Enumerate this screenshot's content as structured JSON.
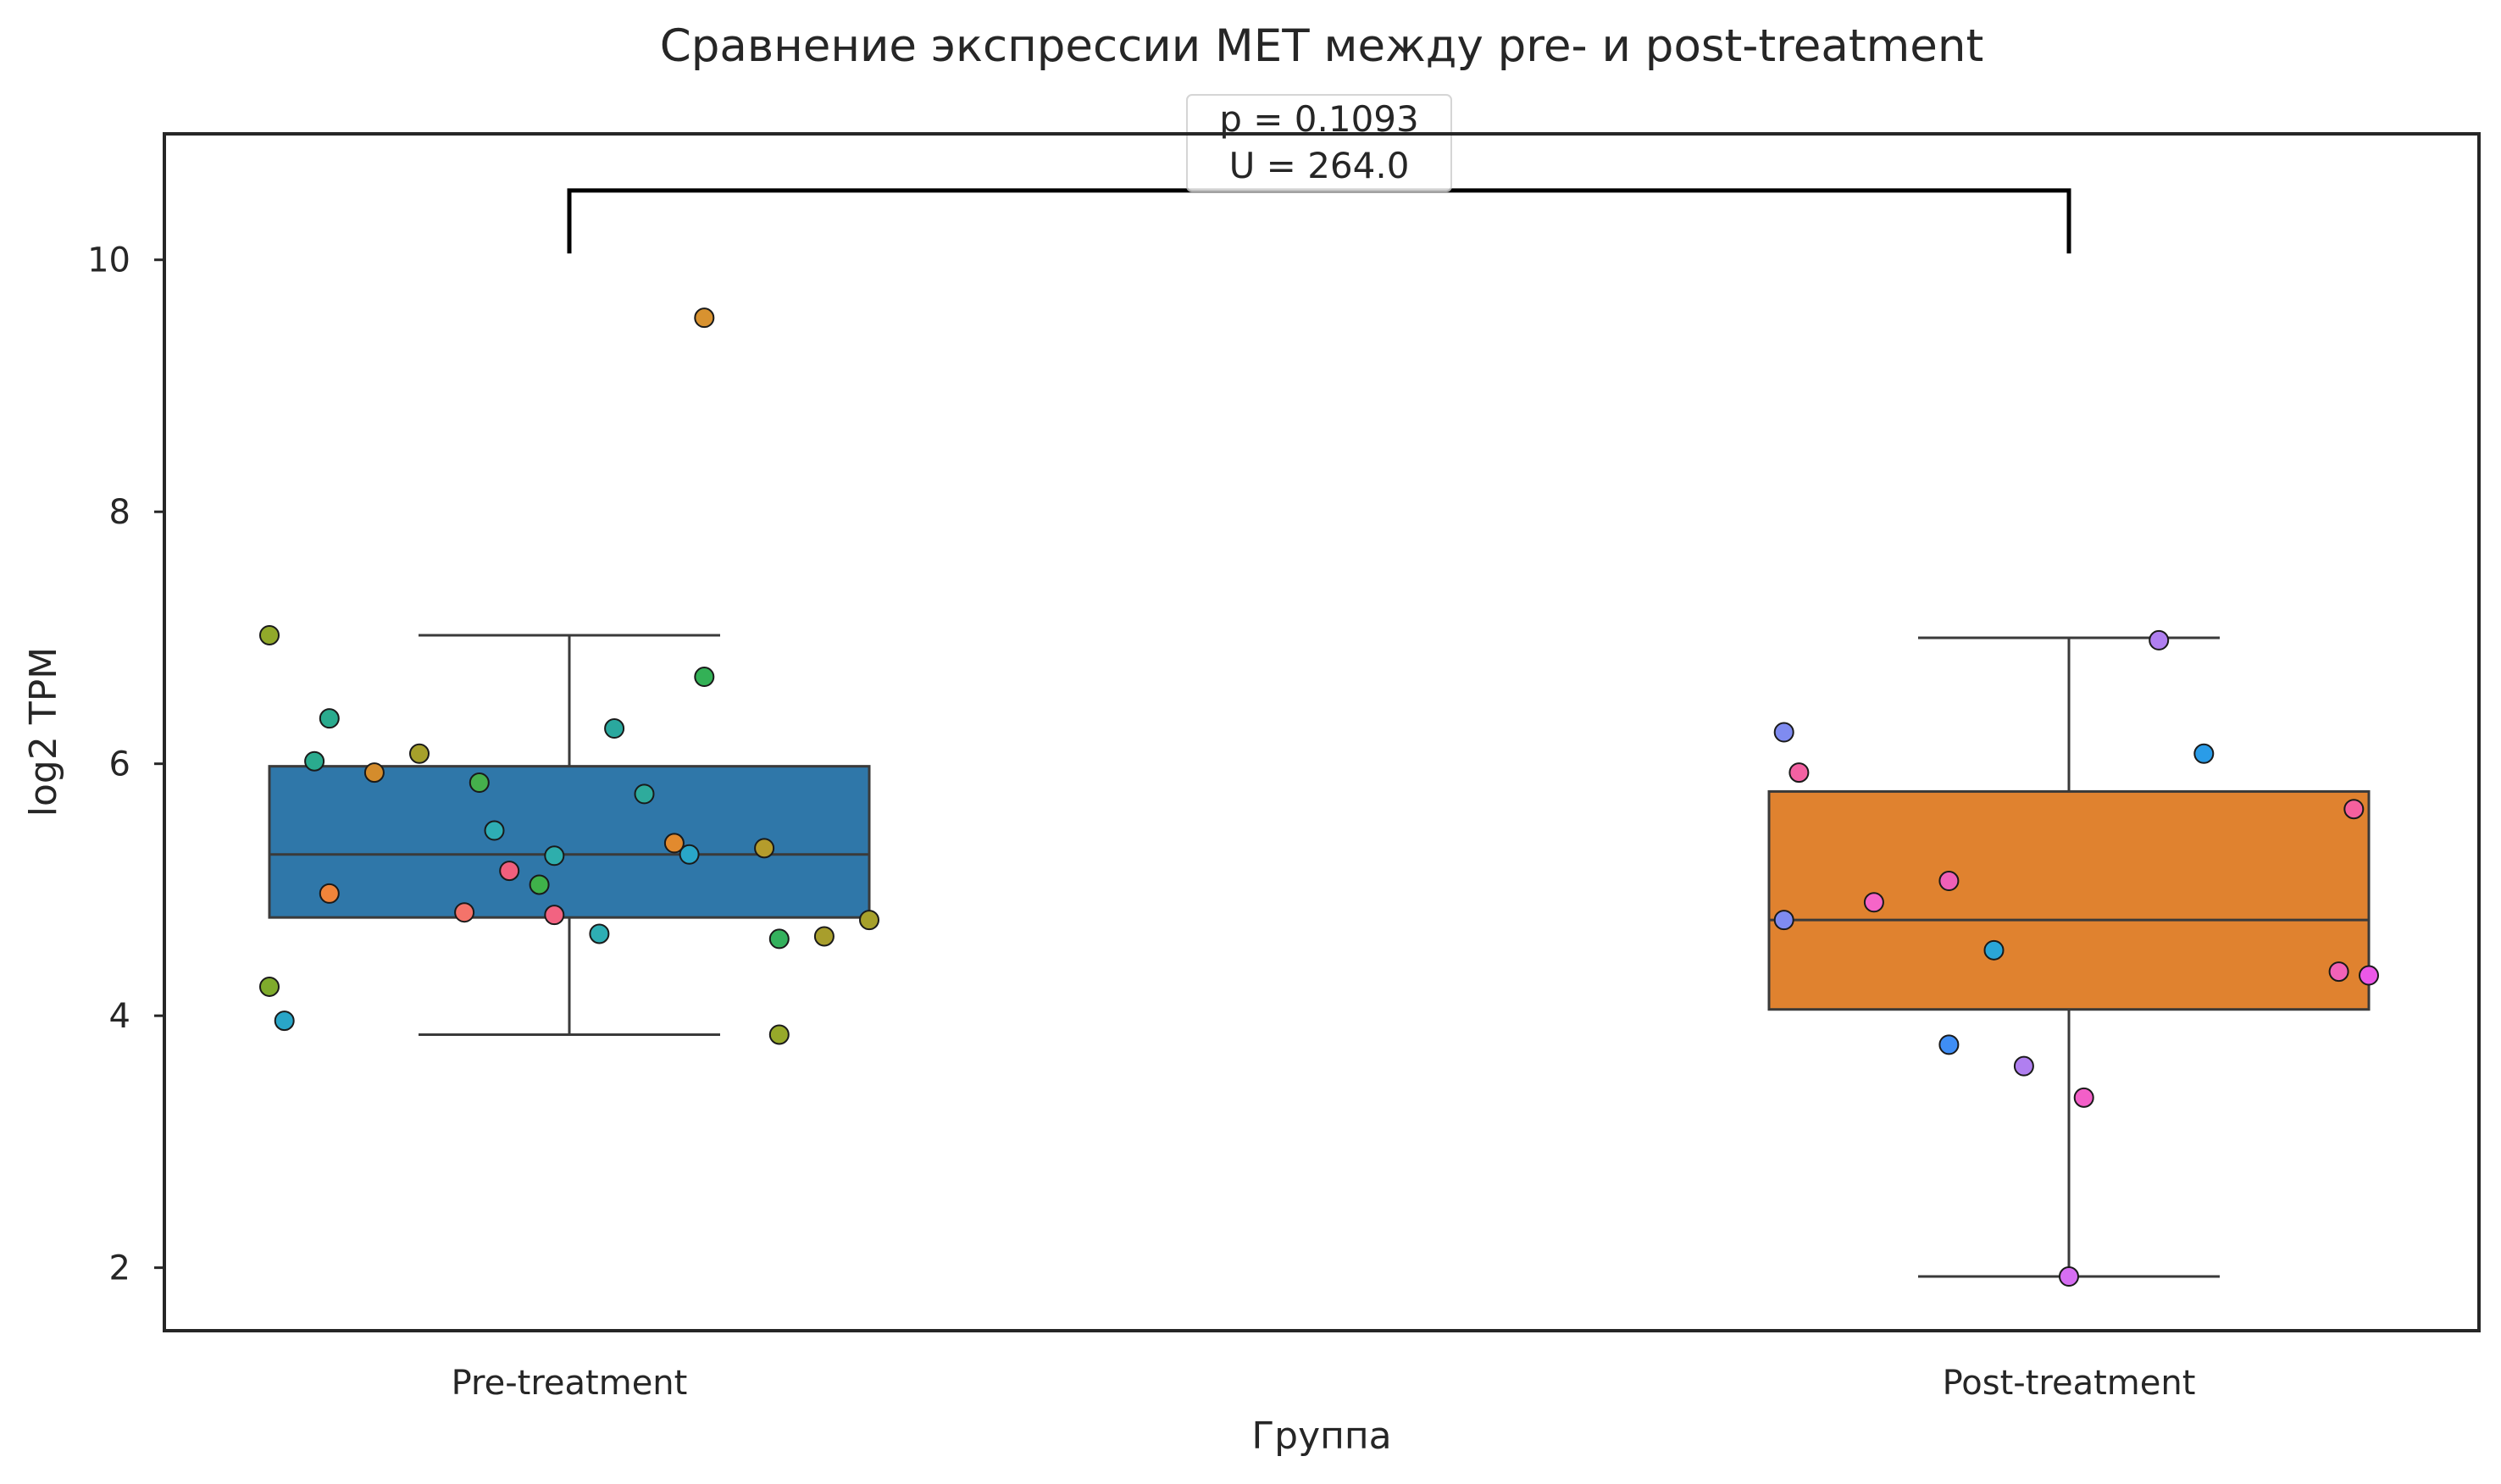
{
  "chart_data": {
    "type": "box",
    "title": "Сравнение экспрессии MET между pre- и post-treatment",
    "xlabel": "Группа",
    "ylabel": "log2 TPM",
    "ylim": [
      1.5,
      11.0
    ],
    "yticks": [
      2,
      4,
      6,
      8,
      10
    ],
    "ytick_labels": [
      "2",
      "4",
      "6",
      "8",
      "10"
    ],
    "grid": false,
    "categories": [
      "Pre-treatment",
      "Post-treatment"
    ],
    "groups": [
      {
        "label": "Pre-treatment",
        "color": "#2f77a9",
        "box": {
          "whisker_low": 3.85,
          "q1": 4.78,
          "median": 5.28,
          "q3": 5.98,
          "whisker_high": 7.02
        },
        "points": [
          {
            "x": -0.2,
            "y": 7.02,
            "color": "#91a92a"
          },
          {
            "x": -0.16,
            "y": 6.36,
            "color": "#2aab8e"
          },
          {
            "x": -0.17,
            "y": 6.02,
            "color": "#2aab8e"
          },
          {
            "x": -0.13,
            "y": 5.93,
            "color": "#d48c2c"
          },
          {
            "x": -0.1,
            "y": 6.08,
            "color": "#a6a02b"
          },
          {
            "x": -0.06,
            "y": 5.85,
            "color": "#45b04c"
          },
          {
            "x": -0.05,
            "y": 5.47,
            "color": "#2eaeb4"
          },
          {
            "x": -0.16,
            "y": 4.97,
            "color": "#f0843a"
          },
          {
            "x": -0.07,
            "y": 4.82,
            "color": "#f4736a"
          },
          {
            "x": -0.04,
            "y": 5.15,
            "color": "#f15f7d"
          },
          {
            "x": -0.02,
            "y": 5.04,
            "color": "#3fb14a"
          },
          {
            "x": -0.01,
            "y": 5.27,
            "color": "#2eaeac"
          },
          {
            "x": -0.01,
            "y": 4.8,
            "color": "#f26381"
          },
          {
            "x": 0.03,
            "y": 6.28,
            "color": "#2aa89e"
          },
          {
            "x": 0.02,
            "y": 4.65,
            "color": "#2eaeb4"
          },
          {
            "x": 0.05,
            "y": 5.76,
            "color": "#2eab9c"
          },
          {
            "x": 0.07,
            "y": 5.37,
            "color": "#e28a2e"
          },
          {
            "x": 0.08,
            "y": 5.28,
            "color": "#29a6c8"
          },
          {
            "x": 0.09,
            "y": 6.69,
            "color": "#33b156"
          },
          {
            "x": 0.09,
            "y": 9.54,
            "color": "#d89230"
          },
          {
            "x": 0.13,
            "y": 5.33,
            "color": "#b59c2c"
          },
          {
            "x": 0.14,
            "y": 4.61,
            "color": "#34b15d"
          },
          {
            "x": 0.14,
            "y": 3.85,
            "color": "#97a92a"
          },
          {
            "x": 0.17,
            "y": 4.63,
            "color": "#a89e2c"
          },
          {
            "x": 0.2,
            "y": 4.76,
            "color": "#a6a02b"
          },
          {
            "x": -0.2,
            "y": 4.23,
            "color": "#7fab2c"
          },
          {
            "x": -0.19,
            "y": 3.96,
            "color": "#29a6c8"
          }
        ]
      },
      {
        "label": "Post-treatment",
        "color": "#e0822f",
        "box": {
          "whisker_low": 1.93,
          "q1": 4.05,
          "median": 4.76,
          "q3": 5.78,
          "whisker_high": 7.0
        },
        "points": [
          {
            "x": -0.19,
            "y": 6.25,
            "color": "#7f8bf0"
          },
          {
            "x": -0.18,
            "y": 5.93,
            "color": "#f361a2"
          },
          {
            "x": -0.19,
            "y": 4.76,
            "color": "#7f8bf0"
          },
          {
            "x": -0.13,
            "y": 4.9,
            "color": "#f665c8"
          },
          {
            "x": -0.08,
            "y": 5.07,
            "color": "#f060b8"
          },
          {
            "x": -0.08,
            "y": 3.77,
            "color": "#3f8ef5"
          },
          {
            "x": -0.05,
            "y": 4.52,
            "color": "#2aa6d8"
          },
          {
            "x": -0.03,
            "y": 3.6,
            "color": "#b07ff0"
          },
          {
            "x": 0.01,
            "y": 3.35,
            "color": "#f35fc8"
          },
          {
            "x": 0.0,
            "y": 1.93,
            "color": "#d66ef2"
          },
          {
            "x": 0.06,
            "y": 6.98,
            "color": "#b07ff0"
          },
          {
            "x": 0.09,
            "y": 6.08,
            "color": "#2a9ce8"
          },
          {
            "x": 0.18,
            "y": 4.35,
            "color": "#f262b8"
          },
          {
            "x": 0.19,
            "y": 5.64,
            "color": "#f6609e"
          },
          {
            "x": 0.2,
            "y": 4.32,
            "color": "#ec58e8"
          }
        ]
      }
    ],
    "annotation": {
      "p_text": "p = 0.1093",
      "u_text": "U = 264.0",
      "bracket_y": 10.55,
      "bracket_tip_y": 10.05
    }
  }
}
